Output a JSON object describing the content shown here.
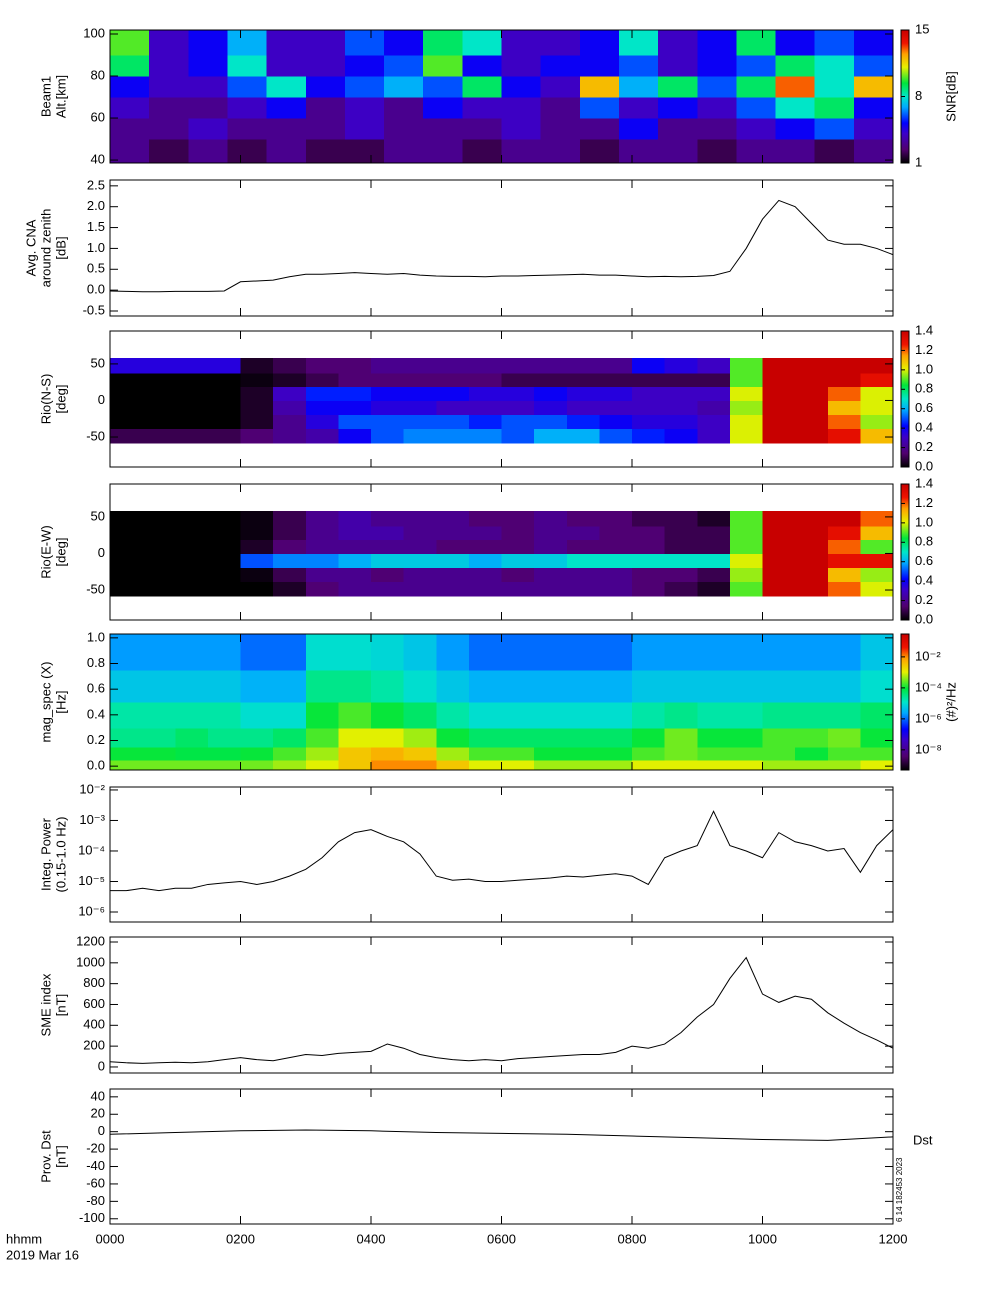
{
  "x_axis": {
    "xlim": [
      0,
      12
    ],
    "xticks": [
      {
        "value": 0,
        "label": "0000"
      },
      {
        "value": 2,
        "label": "0200"
      },
      {
        "value": 4,
        "label": "0400"
      },
      {
        "value": 6,
        "label": "0600"
      },
      {
        "value": 8,
        "label": "0800"
      },
      {
        "value": 10,
        "label": "1000"
      },
      {
        "value": 12,
        "label": "1200"
      }
    ],
    "label": "hhmm",
    "sublabel": "2019 Mar 16"
  },
  "chart_data": [
    {
      "type": "heatmap",
      "ylabel": [
        "Beam1",
        "Alt.[km]"
      ],
      "ylim": [
        38.6,
        101.9
      ],
      "yticks": [
        40,
        60,
        80,
        100
      ],
      "x_edges": [
        0,
        0.6,
        1.2,
        1.8,
        2.4,
        3,
        3.6,
        4.2,
        4.8,
        5.4,
        6,
        6.6,
        7.2,
        7.8,
        8.4,
        9,
        9.6,
        10.2,
        10.8,
        11.4,
        12
      ],
      "y_edges": [
        38.6,
        50,
        60,
        70,
        80,
        90,
        101.9
      ],
      "z": [
        [
          3,
          2,
          3,
          2,
          3,
          2,
          2,
          3,
          3,
          2,
          3,
          3,
          2,
          3,
          3,
          2,
          3,
          3,
          2,
          3
        ],
        [
          3,
          3,
          4,
          3,
          3,
          3,
          4,
          3,
          3,
          3,
          4,
          3,
          3,
          5,
          3,
          3,
          4,
          5,
          6,
          4
        ],
        [
          4,
          3,
          3,
          4,
          5,
          3,
          4,
          3,
          5,
          4,
          4,
          3,
          6,
          4,
          5,
          4,
          6,
          8,
          9,
          5
        ],
        [
          5,
          4,
          4,
          6,
          8,
          5,
          6,
          7,
          6,
          9,
          5,
          4,
          12,
          7,
          9,
          6,
          9,
          13,
          8,
          12
        ],
        [
          9,
          4,
          5,
          8,
          4,
          4,
          5,
          6,
          10,
          5,
          4,
          5,
          5,
          6,
          4,
          5,
          6,
          9,
          8,
          6
        ],
        [
          10,
          4,
          5,
          7,
          4,
          4,
          6,
          5,
          9,
          8,
          4,
          4,
          5,
          8,
          4,
          5,
          9,
          5,
          6,
          5
        ]
      ],
      "zlim": [
        1,
        15
      ],
      "zticks": [
        1,
        8,
        15
      ],
      "colorbar_label": "SNR[dB]"
    },
    {
      "type": "line",
      "ylabel": [
        "Avg. CNA",
        "around zenith",
        "[dB]"
      ],
      "ylim": [
        -0.62,
        2.64
      ],
      "yticks": [
        -0.5,
        {
          "value": 0,
          "label": "0.0"
        },
        0.5,
        {
          "value": 1,
          "label": "1.0"
        },
        1.5,
        {
          "value": 2,
          "label": "2.0"
        },
        2.5
      ],
      "color": "#000000",
      "x": [
        0,
        0.25,
        0.5,
        0.75,
        1,
        1.25,
        1.5,
        1.75,
        2,
        2.25,
        2.5,
        2.75,
        3,
        3.25,
        3.5,
        3.75,
        4,
        4.25,
        4.5,
        4.75,
        5,
        5.25,
        5.5,
        5.75,
        6,
        6.25,
        6.5,
        6.75,
        7,
        7.25,
        7.5,
        7.75,
        8,
        8.25,
        8.5,
        8.75,
        9,
        9.25,
        9.5,
        9.75,
        10,
        10.25,
        10.5,
        10.75,
        11,
        11.25,
        11.5,
        11.75,
        12
      ],
      "values": [
        -0.02,
        -0.03,
        -0.04,
        -0.04,
        -0.03,
        -0.03,
        -0.03,
        -0.02,
        0.2,
        0.22,
        0.24,
        0.32,
        0.38,
        0.38,
        0.4,
        0.42,
        0.4,
        0.38,
        0.4,
        0.36,
        0.34,
        0.33,
        0.33,
        0.32,
        0.34,
        0.34,
        0.35,
        0.36,
        0.37,
        0.38,
        0.36,
        0.36,
        0.34,
        0.32,
        0.33,
        0.32,
        0.33,
        0.35,
        0.45,
        1.0,
        1.7,
        2.15,
        2.0,
        1.6,
        1.2,
        1.1,
        1.1,
        1.0,
        0.85
      ]
    },
    {
      "type": "heatmap",
      "ylabel": [
        "Rio(N-S)",
        "[deg]"
      ],
      "ylim": [
        -91,
        95
      ],
      "yticks": [
        -50,
        0,
        50
      ],
      "x_edges": [
        0,
        0.5,
        1,
        1.5,
        2,
        2.5,
        3,
        3.5,
        4,
        4.5,
        5,
        5.5,
        6,
        6.5,
        7,
        7.5,
        8,
        8.5,
        9,
        9.5,
        10,
        10.5,
        11,
        11.5,
        12
      ],
      "y_edges": [
        -58,
        -38,
        -19,
        0,
        19,
        38,
        58
      ],
      "z": [
        [
          0.1,
          0.1,
          0.1,
          0.1,
          0.15,
          0.2,
          0.25,
          0.4,
          0.5,
          0.55,
          0.55,
          0.55,
          0.5,
          0.6,
          0.6,
          0.5,
          0.45,
          0.4,
          0.3,
          1.0,
          1.4,
          1.4,
          1.3,
          1.1
        ],
        [
          0,
          0,
          0,
          0,
          0.05,
          0.2,
          0.35,
          0.5,
          0.5,
          0.5,
          0.5,
          0.45,
          0.5,
          0.5,
          0.45,
          0.4,
          0.35,
          0.35,
          0.3,
          1.0,
          1.4,
          1.4,
          1.2,
          0.95
        ],
        [
          0,
          0,
          0,
          0,
          0.05,
          0.25,
          0.4,
          0.4,
          0.35,
          0.35,
          0.3,
          0.3,
          0.3,
          0.35,
          0.3,
          0.3,
          0.3,
          0.3,
          0.25,
          0.95,
          1.4,
          1.4,
          1.1,
          1.0
        ],
        [
          0,
          0,
          0,
          0,
          0.05,
          0.3,
          0.45,
          0.45,
          0.4,
          0.4,
          0.4,
          0.35,
          0.35,
          0.4,
          0.35,
          0.35,
          0.3,
          0.3,
          0.3,
          1.0,
          1.4,
          1.4,
          1.2,
          1.0
        ],
        [
          0,
          0,
          0,
          0,
          0.02,
          0.05,
          0.1,
          0.15,
          0.15,
          0.15,
          0.15,
          0.15,
          0.1,
          0.1,
          0.1,
          0.1,
          0.1,
          0.1,
          0.1,
          0.9,
          1.4,
          1.4,
          1.4,
          1.3
        ],
        [
          0.35,
          0.35,
          0.35,
          0.35,
          0.05,
          0.1,
          0.15,
          0.15,
          0.2,
          0.2,
          0.2,
          0.2,
          0.2,
          0.2,
          0.2,
          0.2,
          0.4,
          0.35,
          0.3,
          0.9,
          1.4,
          1.4,
          1.4,
          1.4
        ]
      ],
      "zlim": [
        0,
        1.4
      ],
      "zticks": [
        {
          "value": 0,
          "label": "0.0"
        },
        0.2,
        0.4,
        0.6,
        0.8,
        {
          "value": 1,
          "label": "1.0"
        },
        1.2,
        1.4
      ]
    },
    {
      "type": "heatmap",
      "ylabel": [
        "Rio(E-W)",
        "[deg]"
      ],
      "ylim": [
        -91,
        95
      ],
      "yticks": [
        -50,
        0,
        50
      ],
      "x_edges": [
        0,
        0.5,
        1,
        1.5,
        2,
        2.5,
        3,
        3.5,
        4,
        4.5,
        5,
        5.5,
        6,
        6.5,
        7,
        7.5,
        8,
        8.5,
        9,
        9.5,
        10,
        10.5,
        11,
        11.5,
        12
      ],
      "y_edges": [
        -58,
        -38,
        -19,
        0,
        19,
        38,
        58
      ],
      "z": [
        [
          0,
          0,
          0,
          0,
          0,
          0.05,
          0.15,
          0.2,
          0.2,
          0.2,
          0.2,
          0.2,
          0.2,
          0.2,
          0.2,
          0.2,
          0.15,
          0.1,
          0.05,
          0.9,
          1.4,
          1.4,
          1.2,
          1.0
        ],
        [
          0,
          0,
          0,
          0,
          0.02,
          0.1,
          0.2,
          0.2,
          0.15,
          0.2,
          0.2,
          0.2,
          0.15,
          0.2,
          0.2,
          0.2,
          0.15,
          0.15,
          0.1,
          0.95,
          1.4,
          1.4,
          1.1,
          0.95
        ],
        [
          0,
          0,
          0,
          0,
          0.5,
          0.55,
          0.55,
          0.6,
          0.65,
          0.65,
          0.65,
          0.6,
          0.65,
          0.65,
          0.7,
          0.7,
          0.7,
          0.7,
          0.7,
          1.0,
          1.4,
          1.4,
          1.3,
          1.3
        ],
        [
          0,
          0,
          0,
          0,
          0.05,
          0.15,
          0.2,
          0.2,
          0.2,
          0.2,
          0.15,
          0.15,
          0.15,
          0.2,
          0.15,
          0.15,
          0.15,
          0.1,
          0.1,
          0.9,
          1.4,
          1.4,
          1.2,
          0.9
        ],
        [
          0,
          0,
          0,
          0,
          0.02,
          0.1,
          0.2,
          0.25,
          0.25,
          0.2,
          0.2,
          0.2,
          0.15,
          0.2,
          0.2,
          0.15,
          0.15,
          0.1,
          0.1,
          0.9,
          1.4,
          1.4,
          1.3,
          1.1
        ],
        [
          0,
          0,
          0,
          0,
          0.02,
          0.1,
          0.2,
          0.25,
          0.2,
          0.2,
          0.2,
          0.15,
          0.15,
          0.2,
          0.15,
          0.15,
          0.1,
          0.1,
          0.05,
          0.9,
          1.4,
          1.4,
          1.4,
          1.2
        ]
      ],
      "zlim": [
        0,
        1.4
      ],
      "zticks": [
        {
          "value": 0,
          "label": "0.0"
        },
        0.2,
        0.4,
        0.6,
        0.8,
        {
          "value": 1,
          "label": "1.0"
        },
        1.2,
        1.4
      ]
    },
    {
      "type": "heatmap",
      "ylabel": [
        "mag_spec (X)",
        "[Hz]"
      ],
      "ylim": [
        -0.03,
        1.03
      ],
      "yticks": [
        {
          "value": 0,
          "label": "0.0"
        },
        0.2,
        0.4,
        0.6,
        0.8,
        {
          "value": 1,
          "label": "1.0"
        }
      ],
      "x_edges": [
        0,
        0.5,
        1,
        1.5,
        2,
        2.5,
        3,
        3.5,
        4,
        4.5,
        5,
        5.5,
        6,
        6.5,
        7,
        7.5,
        8,
        8.5,
        9,
        9.5,
        10,
        10.5,
        11,
        11.5,
        12
      ],
      "y_edges": [
        -0.03,
        0.05,
        0.15,
        0.3,
        0.5,
        0.75,
        1.03
      ],
      "z": [
        [
          0.0003,
          0.0003,
          0.0003,
          0.0003,
          0.0003,
          0.0005,
          0.001,
          0.003,
          0.01,
          0.01,
          0.003,
          0.001,
          0.001,
          0.0005,
          0.0005,
          0.0005,
          0.001,
          0.001,
          0.001,
          0.001,
          0.0005,
          0.0005,
          0.0005,
          0.001
        ],
        [
          0.0001,
          0.0001,
          8e-05,
          8e-05,
          0.0001,
          0.0002,
          0.0005,
          0.003,
          0.005,
          0.003,
          0.0005,
          0.0002,
          0.0002,
          0.0001,
          0.0001,
          0.0001,
          0.0002,
          0.0003,
          0.0002,
          0.0002,
          0.0002,
          0.0001,
          0.0002,
          0.0002
        ],
        [
          3e-05,
          3e-05,
          5e-05,
          3e-05,
          3e-05,
          5e-05,
          0.0002,
          0.001,
          0.001,
          0.0005,
          0.0001,
          5e-05,
          5e-05,
          5e-05,
          5e-05,
          5e-05,
          0.0001,
          0.0003,
          0.0001,
          0.0001,
          0.0002,
          0.0002,
          0.0003,
          0.0001
        ],
        [
          2e-05,
          2e-05,
          2e-05,
          2e-05,
          1e-05,
          1e-05,
          0.0001,
          0.0002,
          0.0001,
          5e-05,
          2e-05,
          1e-05,
          1e-05,
          1e-05,
          1e-05,
          1e-05,
          2e-05,
          3e-05,
          2e-05,
          2e-05,
          3e-05,
          3e-05,
          3e-05,
          5e-05
        ],
        [
          5e-06,
          5e-06,
          5e-06,
          5e-06,
          3e-06,
          3e-06,
          3e-05,
          3e-05,
          2e-05,
          1e-05,
          5e-06,
          3e-06,
          3e-06,
          3e-06,
          3e-06,
          3e-06,
          5e-06,
          5e-06,
          5e-06,
          5e-06,
          5e-06,
          5e-06,
          5e-06,
          1e-05
        ],
        [
          2e-06,
          2e-06,
          2e-06,
          2e-06,
          1e-06,
          1e-06,
          1e-05,
          1e-05,
          8e-06,
          5e-06,
          2e-06,
          1e-06,
          1e-06,
          1e-06,
          1e-06,
          1e-06,
          2e-06,
          2e-06,
          2e-06,
          2e-06,
          2e-06,
          2e-06,
          2e-06,
          5e-06
        ]
      ],
      "zlim": [
        5e-10,
        0.3
      ],
      "zscale": "log",
      "zticks": [
        {
          "value": 1e-08,
          "label": "10⁻⁸"
        },
        {
          "value": 1e-06,
          "label": "10⁻⁶"
        },
        {
          "value": 0.0001,
          "label": "10⁻⁴"
        },
        {
          "value": 0.01,
          "label": "10⁻²"
        }
      ],
      "colorbar_label": "(#)²/Hz"
    },
    {
      "type": "line",
      "ylabel": [
        "Integ. Power",
        "(0.15-1.0 Hz)"
      ],
      "ylim": [
        4.7e-07,
        0.0125
      ],
      "log": true,
      "yticks": [
        {
          "value": 1e-06,
          "label": "10⁻⁶"
        },
        {
          "value": 1e-05,
          "label": "10⁻⁵"
        },
        {
          "value": 0.0001,
          "label": "10⁻⁴"
        },
        {
          "value": 0.001,
          "label": "10⁻³"
        },
        {
          "value": 0.01,
          "label": "10⁻²"
        }
      ],
      "color": "#000000",
      "x": [
        0,
        0.25,
        0.5,
        0.75,
        1,
        1.25,
        1.5,
        1.75,
        2,
        2.25,
        2.5,
        2.75,
        3,
        3.25,
        3.5,
        3.75,
        4,
        4.25,
        4.5,
        4.75,
        5,
        5.25,
        5.5,
        5.75,
        6,
        6.25,
        6.5,
        6.75,
        7,
        7.25,
        7.5,
        7.75,
        8,
        8.25,
        8.5,
        8.75,
        9,
        9.25,
        9.5,
        9.75,
        10,
        10.25,
        10.5,
        10.75,
        11,
        11.25,
        11.5,
        11.75,
        12
      ],
      "values": [
        5e-06,
        5e-06,
        6e-06,
        5e-06,
        6e-06,
        6e-06,
        8e-06,
        9e-06,
        1e-05,
        8e-06,
        1e-05,
        1.5e-05,
        2.5e-05,
        6e-05,
        0.0002,
        0.0004,
        0.0005,
        0.0003,
        0.0002,
        8e-05,
        1.5e-05,
        1.1e-05,
        1.2e-05,
        1e-05,
        1e-05,
        1.1e-05,
        1.2e-05,
        1.3e-05,
        1.5e-05,
        1.4e-05,
        1.6e-05,
        1.8e-05,
        1.5e-05,
        8e-06,
        6e-05,
        0.0001,
        0.00015,
        0.002,
        0.00015,
        0.0001,
        6e-05,
        0.0004,
        0.0002,
        0.00015,
        0.0001,
        0.00012,
        2e-05,
        0.00015,
        0.0005
      ]
    },
    {
      "type": "line",
      "ylabel": [
        "SME index",
        "[nT]"
      ],
      "ylim": [
        -58,
        1248
      ],
      "yticks": [
        0,
        200,
        400,
        600,
        800,
        1000,
        1200
      ],
      "color": "#000000",
      "x": [
        0,
        0.25,
        0.5,
        0.75,
        1,
        1.25,
        1.5,
        1.75,
        2,
        2.25,
        2.5,
        2.75,
        3,
        3.25,
        3.5,
        3.75,
        4,
        4.25,
        4.5,
        4.75,
        5,
        5.25,
        5.5,
        5.75,
        6,
        6.25,
        6.5,
        6.75,
        7,
        7.25,
        7.5,
        7.75,
        8,
        8.25,
        8.5,
        8.75,
        9,
        9.25,
        9.5,
        9.75,
        10,
        10.25,
        10.5,
        10.75,
        11,
        11.25,
        11.5,
        11.75,
        12
      ],
      "values": [
        50,
        40,
        35,
        40,
        45,
        40,
        50,
        70,
        90,
        70,
        60,
        90,
        120,
        110,
        130,
        140,
        150,
        220,
        180,
        120,
        90,
        70,
        60,
        70,
        60,
        80,
        90,
        100,
        110,
        120,
        120,
        140,
        200,
        180,
        220,
        330,
        480,
        600,
        850,
        1050,
        700,
        620,
        680,
        650,
        520,
        420,
        330,
        260,
        180
      ]
    },
    {
      "type": "line",
      "ylabel": [
        "Prov. Dst",
        "[nT]"
      ],
      "ylim": [
        -106,
        49
      ],
      "yticks": [
        -100,
        -80,
        -60,
        -40,
        -20,
        0,
        20,
        40
      ],
      "color": "#000000",
      "x": [
        0,
        1,
        2,
        3,
        4,
        5,
        6,
        7,
        8,
        9,
        10,
        11,
        12
      ],
      "values": [
        -3,
        -1,
        1,
        2,
        1,
        -1,
        -2,
        -3,
        -5,
        -7,
        -9,
        -10,
        -6
      ],
      "annotations": [
        "Dst",
        "6 14 182453 2023"
      ]
    }
  ]
}
